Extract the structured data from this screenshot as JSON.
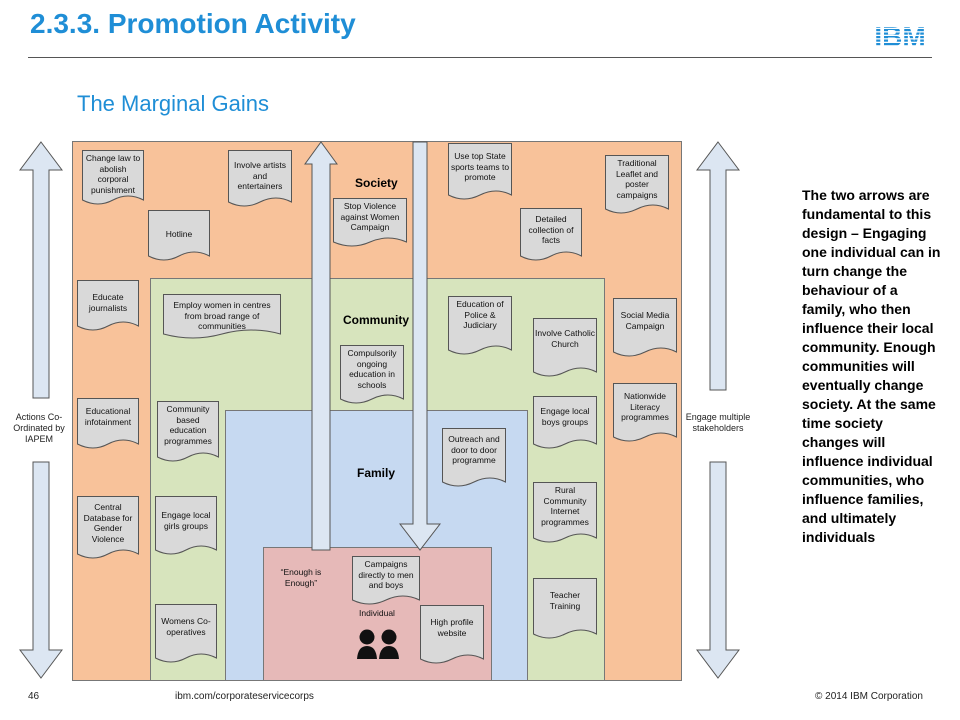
{
  "header": {
    "title": "2.3.3. Promotion Activity",
    "logo_text": "IBM",
    "subtitle": "The Marginal Gains"
  },
  "side_labels": {
    "left": "Actions Co-Ordinated by IAPEM",
    "right": "Engage multiple stakeholders"
  },
  "regions": {
    "society": "Society",
    "community": "Community",
    "family": "Family",
    "individual": "Individual"
  },
  "items": {
    "change_law": "Change law to abolish corporal punishment",
    "involve_artists": "Involve artists and entertainers",
    "stop_violence": "Stop Violence against Women Campaign",
    "top_state_sports": "Use top State sports teams to promote",
    "traditional_leaflet": "Traditional Leaflet and poster campaigns",
    "hotline": "Hotline",
    "detailed_collection": "Detailed collection of facts",
    "educate_journalists": "Educate journalists",
    "social_media": "Social Media Campaign",
    "nationwide_literacy": "Nationwide Literacy programmes",
    "educational_infotainment": "Educational infotainment",
    "central_database": "Central Database for Gender Violence",
    "employ_women": "Employ women in centres from broad range of communities",
    "education_police": "Education of Police & Judiciary",
    "involve_catholic": "Involve Catholic Church",
    "compulsory_education": "Compulsorily ongoing education in schools",
    "community_education": "Community based education programmes",
    "engage_boys": "Engage local boys groups",
    "rural_internet": "Rural Community Internet programmes",
    "engage_girls": "Engage local girls groups",
    "teacher_training": "Teacher Training",
    "womens_coops": "Womens Co-operatives",
    "outreach": "Outreach and door to door programme",
    "enough": "“Enough is Enough”",
    "campaigns_men": "Campaigns directly to men and boys",
    "high_profile": "High profile website"
  },
  "side_text": "The two arrows are fundamental to this design – Engaging one individual can in turn change the behaviour of a family, who then influence their local community. Enough communities will eventually change society. At the same time society changes will influence individual communities, who influence families, and ultimately individuals",
  "footer": {
    "page": "46",
    "url": "ibm.com/corporateservicecorps",
    "copyright": "© 2014 IBM  Corporation"
  },
  "colors": {
    "title": "#1f8ed6",
    "society": "#f8c29a",
    "community": "#d7e4bd",
    "family": "#c6d9f1",
    "individual": "#e6b9b8",
    "doc": "#d9d9d9",
    "arrow": "#dce6f2"
  }
}
